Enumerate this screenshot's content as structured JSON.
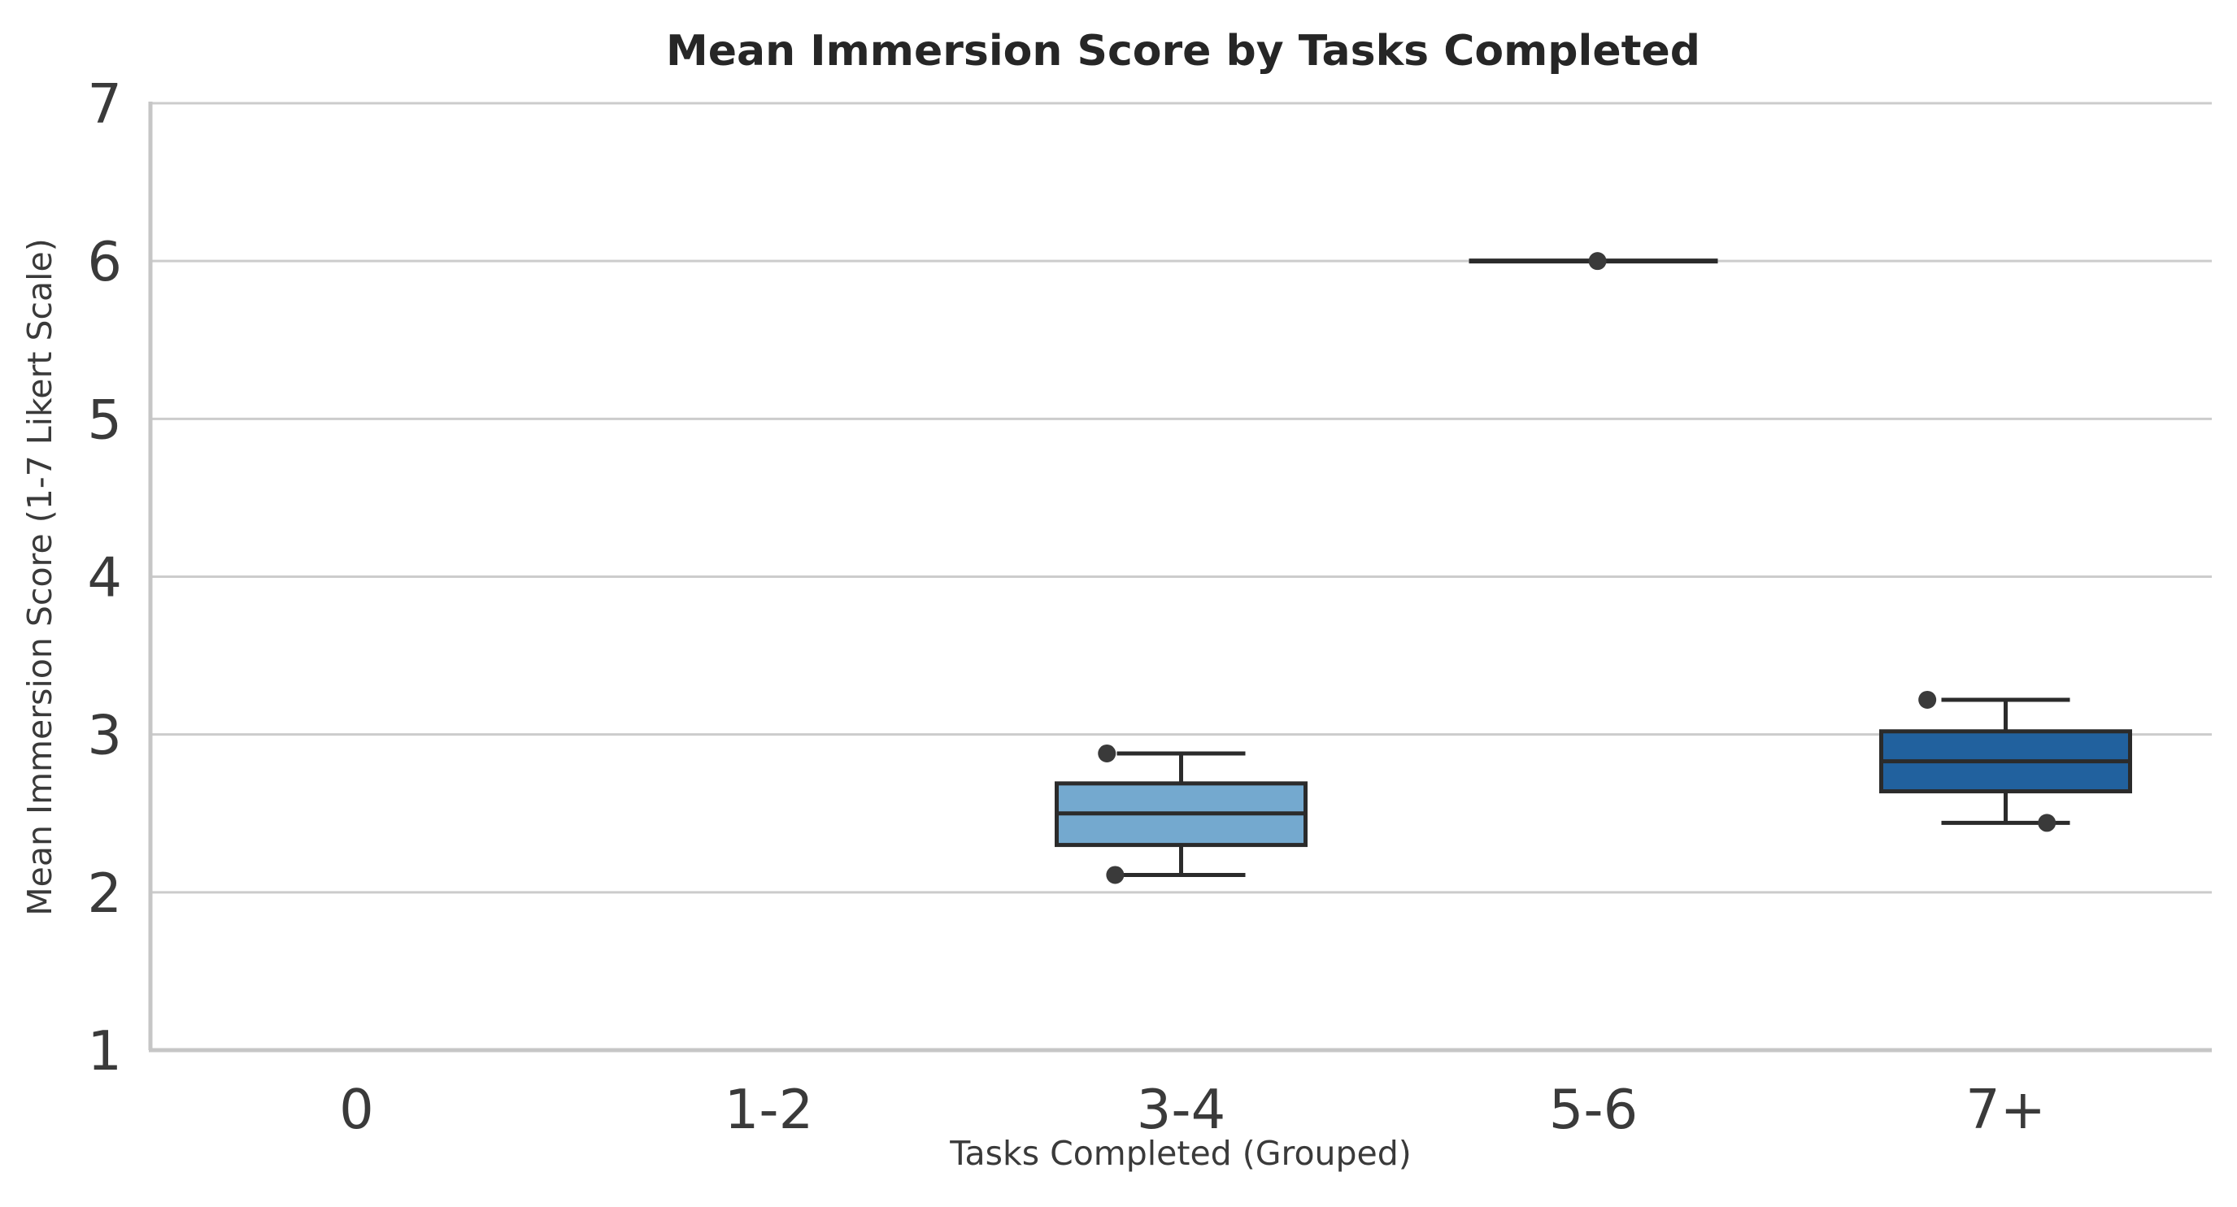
{
  "page": {
    "background": "#ffffff"
  },
  "chart_data": {
    "type": "boxplot",
    "title": "Mean Immersion Score by Tasks Completed",
    "xlabel": "Tasks Completed (Grouped)",
    "ylabel": "Mean Immersion Score (1-7 Likert Scale)",
    "categories": [
      "0",
      "1-2",
      "3-4",
      "5-6",
      "7+"
    ],
    "y_ticks": [
      "1",
      "2",
      "3",
      "4",
      "5",
      "6",
      "7"
    ],
    "ylim": [
      1,
      7
    ],
    "grid": "horizontal-only",
    "legend": "none",
    "colors": {
      "background": "#ffffff",
      "grid": "#cccccc",
      "spine": "#c6c6c6",
      "box_line": "#2b2b2b",
      "point": "#3a3a3a",
      "title_text": "#262626",
      "tick_text": "#3a3a3a",
      "label_text": "#3a3a3a"
    },
    "boxes": [
      {
        "category": "3-4",
        "whisker_low": 2.11,
        "q1": 2.3,
        "median": 2.5,
        "q3": 2.69,
        "whisker_high": 2.88,
        "fill": "#74a9cf"
      },
      {
        "category": "5-6",
        "whisker_low": 6.0,
        "q1": 6.0,
        "median": 6.0,
        "q3": 6.0,
        "whisker_high": 6.0,
        "fill": "#4292c6"
      },
      {
        "category": "7+",
        "whisker_low": 2.44,
        "q1": 2.64,
        "median": 2.83,
        "q3": 3.02,
        "whisker_high": 3.22,
        "fill": "#21619e"
      }
    ],
    "points": [
      {
        "category": "3-4",
        "value": 2.88,
        "x_offset": -0.18
      },
      {
        "category": "3-4",
        "value": 2.11,
        "x_offset": -0.16
      },
      {
        "category": "5-6",
        "value": 6.0,
        "x_offset": 0.01
      },
      {
        "category": "7+",
        "value": 3.22,
        "x_offset": -0.19
      },
      {
        "category": "7+",
        "value": 2.44,
        "x_offset": 0.1
      }
    ]
  }
}
